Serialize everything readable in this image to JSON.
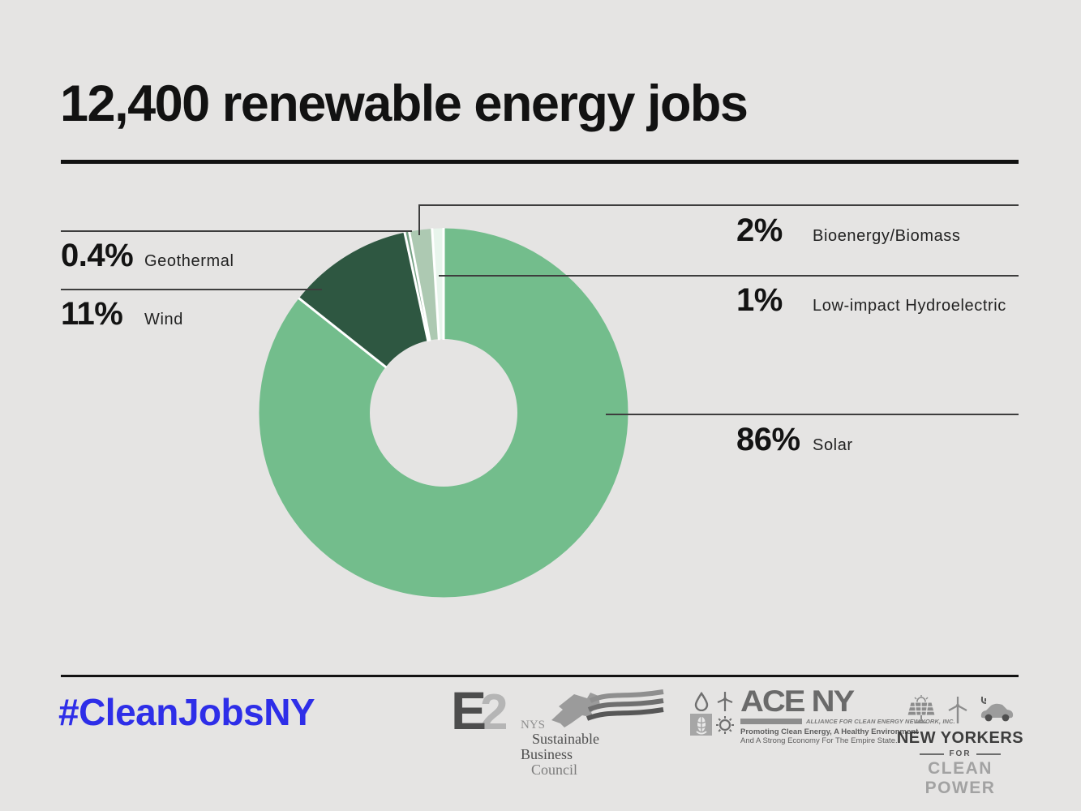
{
  "title": "12,400 renewable energy jobs",
  "colors": {
    "background": "#e5e4e3",
    "accent_blue": "#2e2ee8",
    "leader_line": "#3d3d3d",
    "text": "#161616",
    "slice_separator": "#ffffff"
  },
  "chart_data": {
    "type": "pie",
    "subtype": "donut",
    "title": "12,400 renewable energy jobs",
    "total_jobs": "12,400",
    "inner_radius_ratio": 0.4,
    "start_angle_deg": 0,
    "direction": "clockwise",
    "legend_position": "callout-labels",
    "series": [
      {
        "name": "Solar",
        "value": 86,
        "label": "86%",
        "color": "#73bd8c"
      },
      {
        "name": "Wind",
        "value": 11,
        "label": "11%",
        "color": "#2e5741"
      },
      {
        "name": "Geothermal",
        "value": 0.4,
        "label": "0.4%",
        "color": "#74a083"
      },
      {
        "name": "Bioenergy/Biomass",
        "value": 2,
        "label": "2%",
        "color": "#adc9b2"
      },
      {
        "name": "Low-impact Hydroelectric",
        "value": 1,
        "label": "1%",
        "color": "#e8f5ec"
      }
    ]
  },
  "callouts": {
    "geothermal": {
      "value": "0.4%",
      "name": "Geothermal"
    },
    "wind": {
      "value": "11%",
      "name": "Wind"
    },
    "bioenergy": {
      "value": "2%",
      "name": "Bioenergy/Biomass"
    },
    "hydro": {
      "value": "1%",
      "name": "Low-impact Hydroelectric"
    },
    "solar": {
      "value": "86%",
      "name": "Solar"
    }
  },
  "footer": {
    "hashtag": "#CleanJobsNY",
    "logos": {
      "e2": {
        "letter": "E",
        "digit": "2"
      },
      "nys_sbc": {
        "lines": [
          "NYS",
          "Sustainable",
          "Business",
          "Council"
        ]
      },
      "ace_ny": {
        "name": "ACE NY",
        "alliance": "ALLIANCE FOR CLEAN ENERGY NEW YORK, INC.",
        "tagline1": "Promoting Clean Energy, A Healthy Environment",
        "tagline2": "And A Strong Economy For The Empire State."
      },
      "nycp": {
        "line1": "NEW YORKERS",
        "line2": "FOR",
        "line3": "CLEAN POWER"
      }
    }
  }
}
